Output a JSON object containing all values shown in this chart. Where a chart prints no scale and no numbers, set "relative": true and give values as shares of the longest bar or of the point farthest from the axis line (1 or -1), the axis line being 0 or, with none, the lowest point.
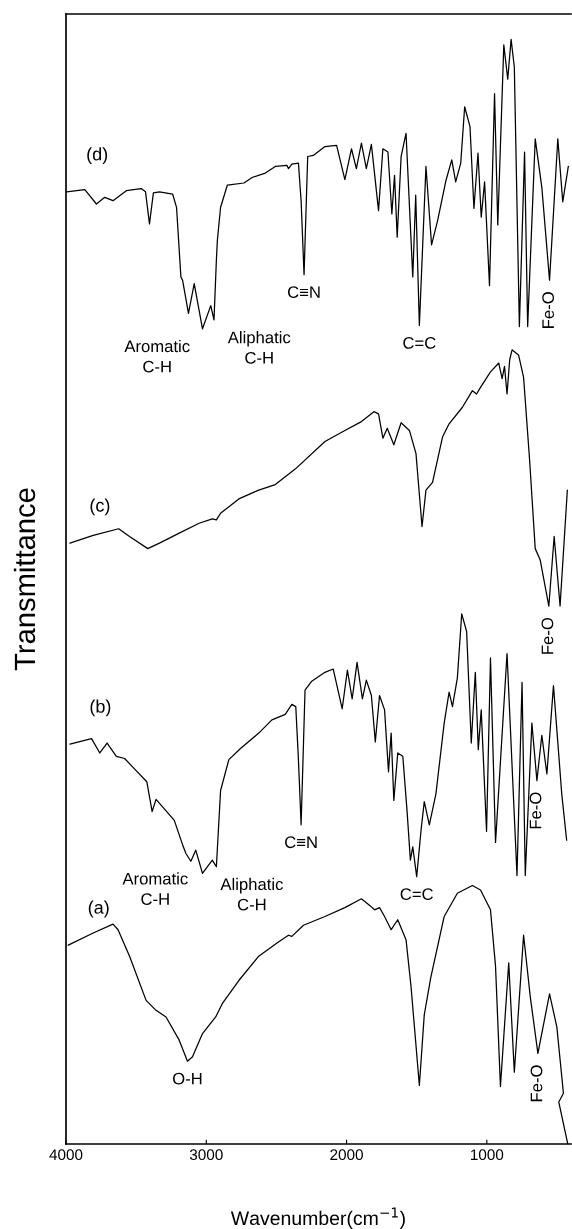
{
  "chart_data": {
    "type": "line",
    "relative": true,
    "xlabel": "Wavenumber(cm$^{−1}$)",
    "ylabel": "Transmittance",
    "xlim": [
      4000,
      400
    ],
    "xticks": [
      4000,
      3000,
      2000,
      1000
    ],
    "tick_labels": "x",
    "grid": false,
    "legend": false,
    "marker": "none",
    "line_style": "solid",
    "series": [
      {
        "name": "(a)",
        "color": "#000000",
        "x": [
          3984,
          3806,
          3665,
          3629,
          3547,
          3429,
          3358,
          3287,
          3193,
          3134,
          3098,
          3027,
          2933,
          2886,
          2768,
          2626,
          2496,
          2414,
          2390,
          2307,
          2154,
          2012,
          1894,
          1835,
          1800,
          1765,
          1729,
          1682,
          1635,
          1576,
          1540,
          1481,
          1446,
          1399,
          1304,
          1210,
          1103,
          1045,
          974,
          938,
          903,
          844,
          804,
          738,
          690,
          636,
          553,
          501,
          454,
          487,
          423
        ],
        "values": [
          0.18,
          0.191,
          0.199,
          0.194,
          0.17,
          0.13,
          0.121,
          0.115,
          0.094,
          0.075,
          0.079,
          0.1,
          0.115,
          0.127,
          0.148,
          0.17,
          0.182,
          0.189,
          0.188,
          0.198,
          0.206,
          0.214,
          0.222,
          0.216,
          0.212,
          0.214,
          0.206,
          0.194,
          0.203,
          0.185,
          0.142,
          0.053,
          0.117,
          0.151,
          0.206,
          0.227,
          0.234,
          0.23,
          0.212,
          0.161,
          0.052,
          0.164,
          0.065,
          0.189,
          0.133,
          0.082,
          0.136,
          0.106,
          0.046,
          0.038,
          0.0
        ]
      },
      {
        "name": "(b)",
        "color": "#000000",
        "x": [
          3972,
          3818,
          3759,
          3707,
          3641,
          3582,
          3500,
          3424,
          3386,
          3358,
          3228,
          3169,
          3145,
          3110,
          3075,
          3027,
          2957,
          2928,
          2898,
          2839,
          2756,
          2626,
          2532,
          2437,
          2390,
          2362,
          2343,
          2324,
          2296,
          2248,
          2154,
          2095,
          2031,
          1994,
          1960,
          1925,
          1887,
          1859,
          1823,
          1795,
          1765,
          1729,
          1701,
          1682,
          1663,
          1635,
          1599,
          1569,
          1545,
          1528,
          1500,
          1469,
          1446,
          1410,
          1363,
          1304,
          1269,
          1245,
          1210,
          1179,
          1144,
          1111,
          1082,
          1061,
          1040,
          1002,
          974,
          938,
          856,
          785,
          749,
          726,
          679,
          643,
          608,
          572,
          525,
          466,
          431
        ],
        "values": [
          0.362,
          0.367,
          0.354,
          0.363,
          0.351,
          0.349,
          0.338,
          0.328,
          0.301,
          0.312,
          0.293,
          0.271,
          0.263,
          0.256,
          0.266,
          0.245,
          0.257,
          0.251,
          0.32,
          0.348,
          0.358,
          0.372,
          0.384,
          0.389,
          0.398,
          0.396,
          0.348,
          0.289,
          0.411,
          0.419,
          0.427,
          0.43,
          0.394,
          0.429,
          0.403,
          0.436,
          0.403,
          0.42,
          0.406,
          0.364,
          0.406,
          0.393,
          0.337,
          0.372,
          0.311,
          0.354,
          0.351,
          0.302,
          0.257,
          0.269,
          0.242,
          0.284,
          0.31,
          0.289,
          0.317,
          0.381,
          0.409,
          0.396,
          0.422,
          0.48,
          0.464,
          0.363,
          0.427,
          0.357,
          0.393,
          0.283,
          0.44,
          0.273,
          0.444,
          0.243,
          0.418,
          0.243,
          0.381,
          0.329,
          0.37,
          0.335,
          0.415,
          0.317,
          0.275
        ]
      },
      {
        "name": "(c)",
        "color": "#000000",
        "x": [
          3972,
          3806,
          3625,
          3547,
          3417,
          3334,
          3193,
          3051,
          2957,
          2928,
          2898,
          2768,
          2626,
          2508,
          2366,
          2154,
          2012,
          1894,
          1805,
          1772,
          1741,
          1710,
          1663,
          1611,
          1552,
          1505,
          1462,
          1434,
          1387,
          1316,
          1269,
          1174,
          1103,
          1073,
          1045,
          974,
          915,
          891,
          874,
          856,
          837,
          820,
          773,
          738,
          695,
          655,
          620,
          558,
          520,
          478,
          426
        ],
        "values": [
          0.544,
          0.551,
          0.557,
          0.55,
          0.539,
          0.544,
          0.553,
          0.562,
          0.566,
          0.565,
          0.571,
          0.584,
          0.592,
          0.597,
          0.611,
          0.636,
          0.646,
          0.654,
          0.663,
          0.661,
          0.639,
          0.648,
          0.633,
          0.653,
          0.646,
          0.625,
          0.559,
          0.592,
          0.599,
          0.64,
          0.652,
          0.667,
          0.682,
          0.679,
          0.685,
          0.699,
          0.707,
          0.693,
          0.704,
          0.679,
          0.71,
          0.719,
          0.714,
          0.694,
          0.619,
          0.539,
          0.529,
          0.487,
          0.55,
          0.487,
          0.592
        ]
      },
      {
        "name": "(d)",
        "color": "#000000",
        "x": [
          3995,
          3866,
          3783,
          3724,
          3665,
          3570,
          3464,
          3433,
          3405,
          3377,
          3334,
          3240,
          3212,
          3181,
          3169,
          3127,
          3086,
          3027,
          2968,
          2945,
          2928,
          2921,
          2898,
          2850,
          2732,
          2673,
          2579,
          2508,
          2425,
          2414,
          2390,
          2343,
          2324,
          2303,
          2277,
          2237,
          2154,
          2071,
          2012,
          1965,
          1930,
          1894,
          1859,
          1823,
          1772,
          1741,
          1705,
          1677,
          1658,
          1639,
          1611,
          1576,
          1528,
          1507,
          1481,
          1434,
          1394,
          1351,
          1292,
          1250,
          1222,
          1186,
          1158,
          1120,
          1092,
          1063,
          1040,
          1016,
          981,
          945,
          922,
          879,
          851,
          827,
          804,
          768,
          731,
          709,
          655,
          608,
          553,
          494,
          459,
          419
        ],
        "values": [
          0.862,
          0.864,
          0.851,
          0.857,
          0.854,
          0.863,
          0.865,
          0.862,
          0.833,
          0.861,
          0.862,
          0.86,
          0.848,
          0.785,
          0.782,
          0.752,
          0.779,
          0.738,
          0.759,
          0.746,
          0.8,
          0.818,
          0.848,
          0.868,
          0.87,
          0.875,
          0.879,
          0.885,
          0.886,
          0.883,
          0.887,
          0.888,
          0.854,
          0.787,
          0.894,
          0.895,
          0.903,
          0.904,
          0.873,
          0.901,
          0.883,
          0.906,
          0.883,
          0.905,
          0.845,
          0.901,
          0.898,
          0.842,
          0.877,
          0.821,
          0.894,
          0.915,
          0.785,
          0.859,
          0.741,
          0.885,
          0.814,
          0.836,
          0.872,
          0.891,
          0.871,
          0.888,
          0.939,
          0.921,
          0.847,
          0.897,
          0.839,
          0.871,
          0.777,
          0.951,
          0.832,
          0.995,
          0.964,
          1.0,
          0.975,
          0.74,
          0.898,
          0.74,
          0.91,
          0.866,
          0.782,
          0.91,
          0.853,
          0.885
        ]
      }
    ],
    "annotations": [
      {
        "text": "O-H",
        "x": 3134,
        "y": 0.075
      },
      {
        "text": "Fe-O",
        "x": 636,
        "y": 0.082
      },
      {
        "text": "Aromatic\nC-H",
        "x": 3110,
        "y": 0.256
      },
      {
        "text": "Aliphatic\nC-H",
        "x": 2928,
        "y": 0.251
      },
      {
        "text": "C≡N",
        "x": 2324,
        "y": 0.289
      },
      {
        "text": "C=C",
        "x": 1500,
        "y": 0.242
      },
      {
        "text": "Fe-O",
        "x": 643,
        "y": 0.329
      },
      {
        "text": "Fe-O",
        "x": 558,
        "y": 0.487
      },
      {
        "text": "Aromatic\nC-H",
        "x": 3027,
        "y": 0.738
      },
      {
        "text": "Aliphatic\nC-H",
        "x": 2945,
        "y": 0.746
      },
      {
        "text": "C≡N",
        "x": 2303,
        "y": 0.787
      },
      {
        "text": "C=C",
        "x": 1481,
        "y": 0.741
      },
      {
        "text": "Fe-O",
        "x": 553,
        "y": 0.782
      }
    ]
  }
}
